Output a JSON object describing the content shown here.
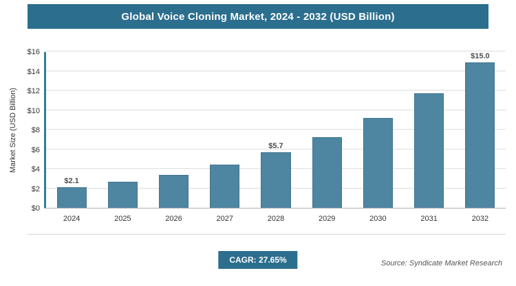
{
  "header": {
    "title": "Global Voice Cloning Market, 2024 - 2032 (USD Billion)"
  },
  "chart_data": {
    "type": "bar",
    "title": "Global Voice Cloning Market, 2024 - 2032 (USD Billion)",
    "xlabel": "",
    "ylabel": "Market Size (USD Billion)",
    "ylim": [
      0,
      16
    ],
    "ytick_step": 2,
    "ytick_labels": [
      "$0",
      "$2",
      "$4",
      "$6",
      "$8",
      "$10",
      "$12",
      "$14",
      "$16"
    ],
    "categories": [
      "2024",
      "2025",
      "2026",
      "2027",
      "2028",
      "2029",
      "2030",
      "2031",
      "2032"
    ],
    "values": [
      2.1,
      2.7,
      3.4,
      4.4,
      5.7,
      7.2,
      9.2,
      11.7,
      15.0
    ],
    "data_labels": [
      "$2.1",
      null,
      null,
      null,
      "$5.7",
      null,
      null,
      null,
      "$15.0"
    ],
    "grid": true,
    "legend": "none",
    "bar_color": "#4e86a1",
    "bar_border_color": "#3f7490",
    "axis_line_color": "#2f7e94",
    "accent_color": "#2c6e8e"
  },
  "footer": {
    "cagr_label": "CAGR: 27.65%",
    "source": "Source: Syndicate Market Research"
  }
}
